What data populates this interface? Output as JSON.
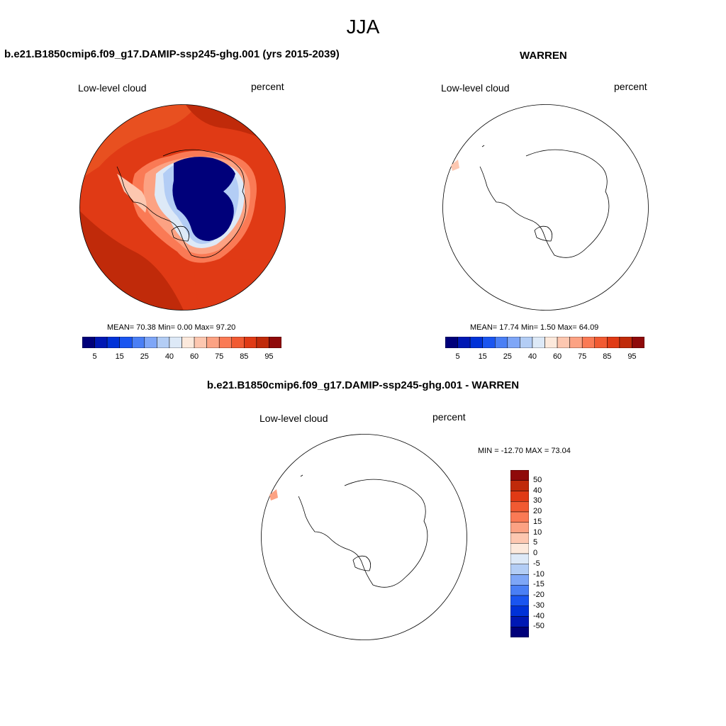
{
  "figure": {
    "title": "JJA",
    "panels": [
      {
        "title": "b.e21.B1850cmip6.f09_g17.DAMIP-ssp245-ghg.001 (yrs 2015-2039)",
        "variable": "Low-level cloud",
        "units": "percent",
        "stats": "MEAN=  70.38  Min=   0.00  Max=  97.20"
      },
      {
        "title": "WARREN",
        "variable": "Low-level cloud",
        "units": "percent",
        "stats": "MEAN=  17.74  Min=   1.50  Max=  64.09"
      },
      {
        "title": "b.e21.B1850cmip6.f09_g17.DAMIP-ssp245-ghg.001 - WARREN",
        "variable": "Low-level cloud",
        "units": "percent",
        "stats": "MIN = -12.70 MAX =  73.04"
      }
    ],
    "colorbar_abs": {
      "colors": [
        "#00007a",
        "#0018b4",
        "#0032d8",
        "#1a55f0",
        "#4a7ff5",
        "#7ea6f7",
        "#b3cdf5",
        "#dde9f7",
        "#fce9dc",
        "#fdc7b0",
        "#fca283",
        "#fa7a55",
        "#f15a32",
        "#e03a15",
        "#c02a0a",
        "#8f0a0a"
      ],
      "labels": [
        "5",
        "15",
        "25",
        "40",
        "60",
        "75",
        "85",
        "95"
      ]
    },
    "colorbar_diff": {
      "colors": [
        "#00007a",
        "#0018b4",
        "#0032d8",
        "#1a55f0",
        "#4a7ff5",
        "#7ea6f7",
        "#b3cdf5",
        "#dde9f7",
        "#fce9dc",
        "#fdc7b0",
        "#fca283",
        "#fa7a55",
        "#f15a32",
        "#e03a15",
        "#c02a0a",
        "#8f0a0a"
      ],
      "labels": [
        "50",
        "40",
        "30",
        "20",
        "15",
        "10",
        "5",
        "0",
        "-5",
        "-10",
        "-15",
        "-20",
        "-30",
        "-40",
        "-50"
      ]
    }
  }
}
